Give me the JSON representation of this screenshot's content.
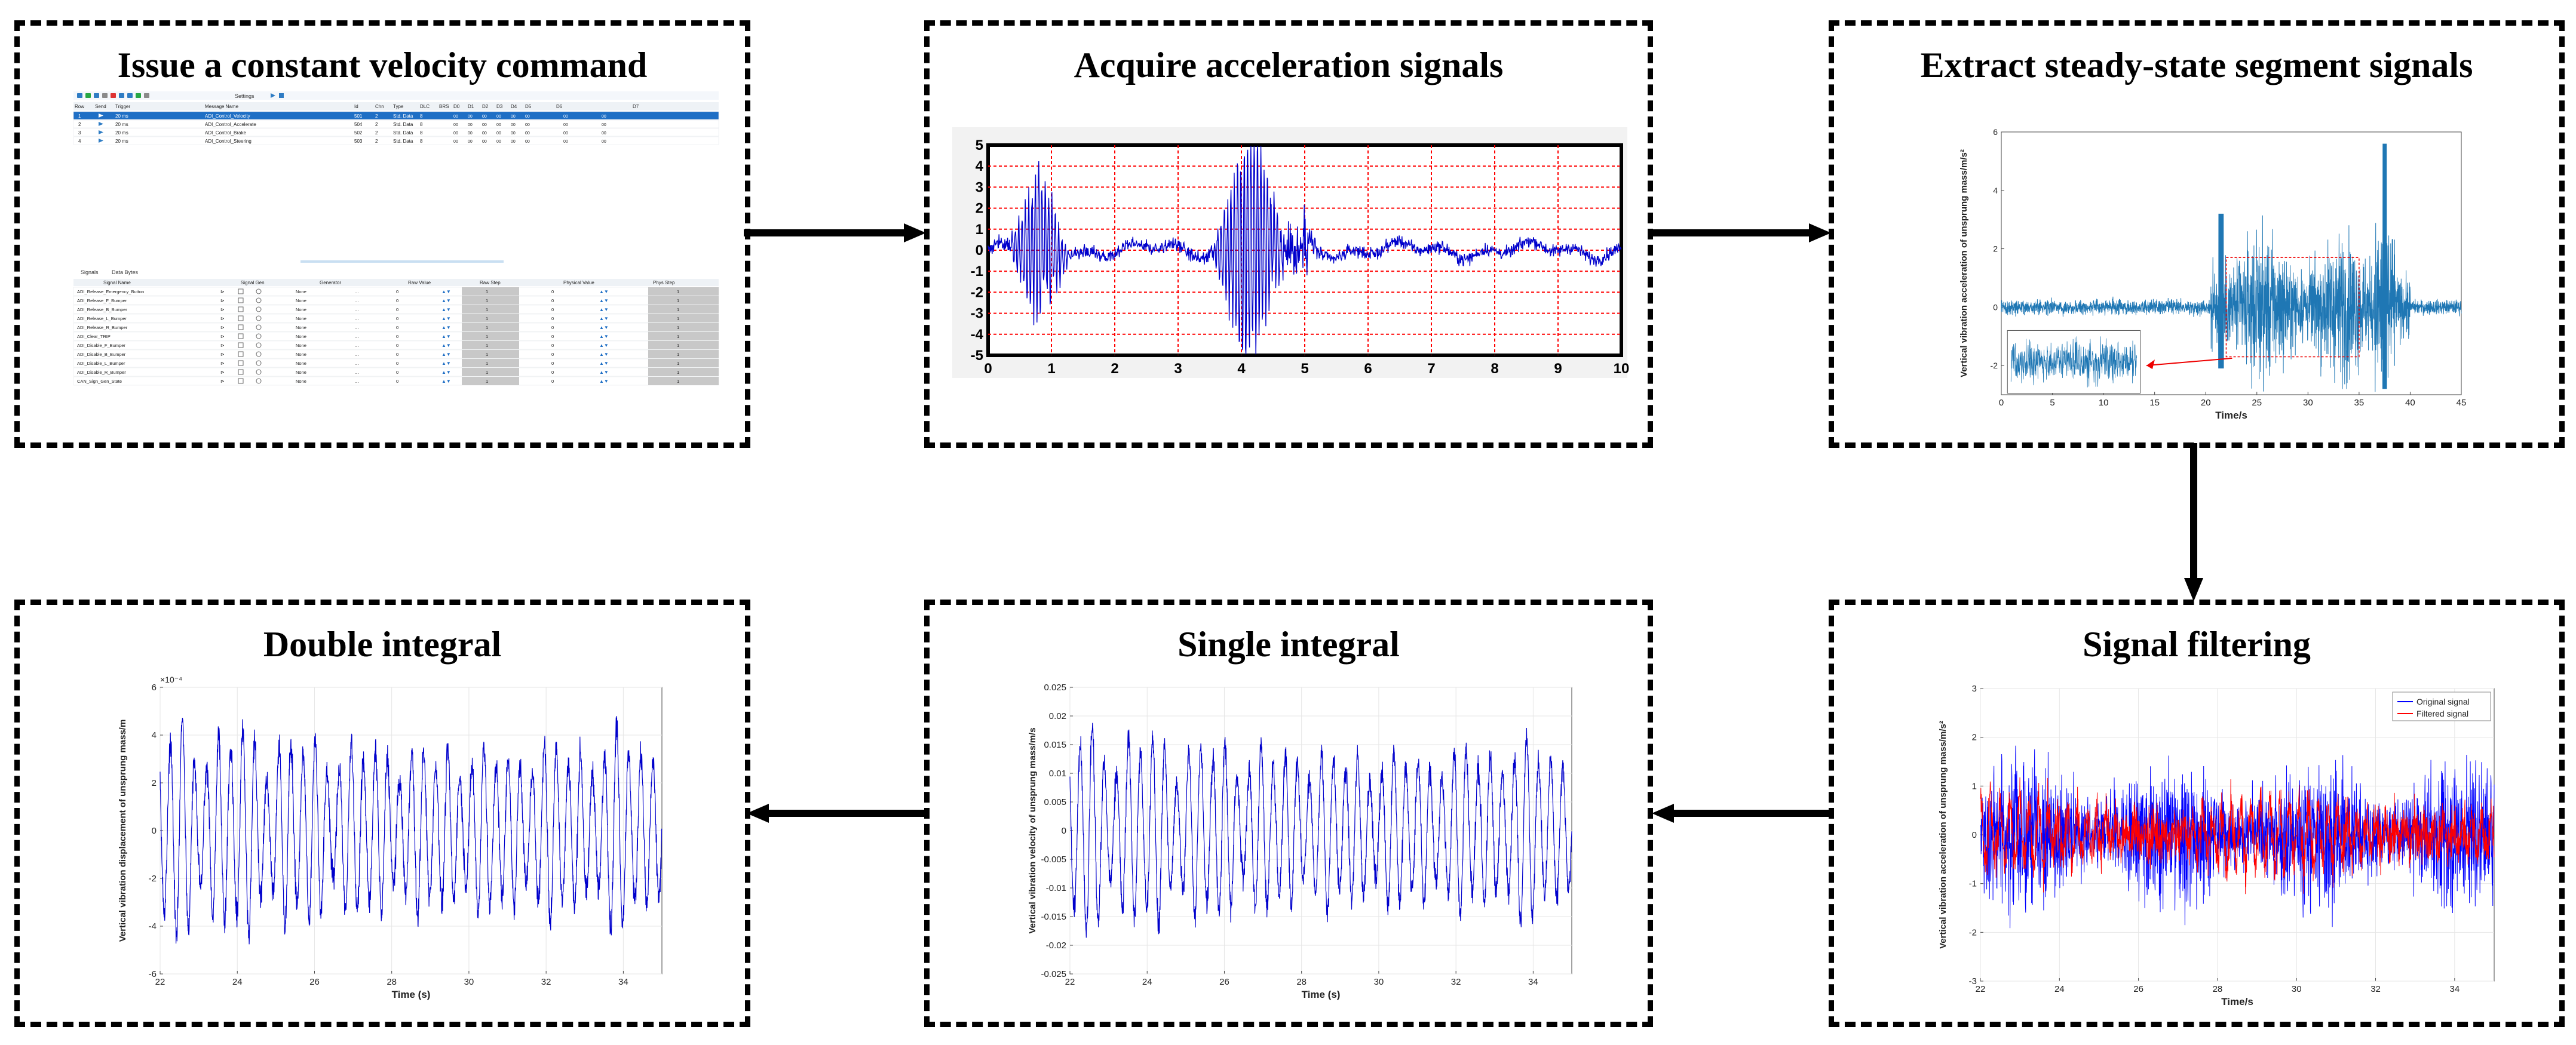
{
  "panels": {
    "p1": {
      "title": "Issue a constant velocity command"
    },
    "p2": {
      "title": "Acquire acceleration signals"
    },
    "p3": {
      "title": "Extract steady-state segment signals"
    },
    "p4": {
      "title": "Signal filtering"
    },
    "p5": {
      "title": "Single integral"
    },
    "p6": {
      "title": "Double integral"
    }
  },
  "software": {
    "msg_headers": [
      "Row",
      "Send",
      "Trigger",
      "Message Name",
      "Id",
      "Chn",
      "Type",
      "DLC",
      "BRS",
      "D0",
      "D1",
      "D2",
      "D3",
      "D4",
      "D5",
      "D6",
      "D7"
    ],
    "msg_rows": [
      [
        "1",
        "20 ms",
        "ADI_Control_Velocity",
        "501",
        "2",
        "Std. Data",
        "8"
      ],
      [
        "2",
        "20 ms",
        "ADI_Control_Accelerate",
        "504",
        "2",
        "Std. Data",
        "8"
      ],
      [
        "3",
        "20 ms",
        "ADI_Control_Brake",
        "502",
        "2",
        "Std. Data",
        "8"
      ],
      [
        "4",
        "20 ms",
        "ADI_Control_Steering",
        "503",
        "2",
        "Std. Data",
        "8"
      ]
    ],
    "toolbar_label": "Settings",
    "tabs": [
      "Signals",
      "Data Bytes"
    ],
    "sig_headers": [
      "Signal Name",
      "Signal Gen",
      "Generator",
      "Raw Value",
      "Raw Step",
      "Physical Value",
      "Phys Step"
    ],
    "sig_rows": [
      [
        "ADI_Release_Emergency_Button",
        "None",
        "0",
        "1",
        "0",
        "1"
      ],
      [
        "ADI_Release_F_Bumper",
        "None",
        "0",
        "1",
        "0",
        "1"
      ],
      [
        "ADI_Release_B_Bumper",
        "None",
        "0",
        "1",
        "0",
        "1"
      ],
      [
        "ADI_Release_L_Bumper",
        "None",
        "0",
        "1",
        "0",
        "1"
      ],
      [
        "ADI_Release_R_Bumper",
        "None",
        "0",
        "1",
        "0",
        "1"
      ],
      [
        "ADI_Clear_TRIP",
        "None",
        "0",
        "1",
        "0",
        "1"
      ],
      [
        "ADI_Disable_F_Bumper",
        "None",
        "0",
        "1",
        "0",
        "1"
      ],
      [
        "ADI_Disable_B_Bumper",
        "None",
        "0",
        "1",
        "0",
        "1"
      ],
      [
        "ADI_Disable_L_Bumper",
        "None",
        "0",
        "1",
        "0",
        "1"
      ],
      [
        "ADI_Disable_R_Bumper",
        "None",
        "0",
        "1",
        "0",
        "1"
      ],
      [
        "CAN_Sign_Gen_State",
        "None",
        "0",
        "1",
        "0",
        "1"
      ]
    ]
  },
  "chart_data": [
    {
      "id": "acquire",
      "type": "line",
      "xlim": [
        0,
        10
      ],
      "ylim": [
        -5,
        5
      ],
      "xticks": [
        0,
        1,
        2,
        3,
        4,
        5,
        6,
        7,
        8,
        9,
        10
      ],
      "yticks": [
        5,
        4,
        3,
        2,
        1,
        0,
        -1,
        -2,
        -3,
        -4,
        -5
      ],
      "grid": true,
      "grid_color": "#ff0000",
      "line_color": "#0000cc",
      "frame_color": "#000000",
      "bursts": [
        [
          0.8,
          4.8
        ],
        [
          4.0,
          4.9
        ],
        [
          4.3,
          4.6
        ]
      ]
    },
    {
      "id": "extract",
      "type": "line",
      "xlabel": "Time/s",
      "ylabel": "Vertical vibration acceleration of unsprung mass/m/s²",
      "xlim": [
        0,
        45
      ],
      "ylim": [
        -3,
        6
      ],
      "xticks": [
        0,
        5,
        10,
        15,
        20,
        25,
        30,
        35,
        40,
        45
      ],
      "line_color": "#1f77b4",
      "selection": [
        22,
        35
      ]
    },
    {
      "id": "filtering",
      "type": "line",
      "xlabel": "Time/s",
      "ylabel": "Vertical vibration acceleration of unsprung mass/m/s²",
      "xlim": [
        22,
        35
      ],
      "ylim": [
        -3,
        3
      ],
      "xticks": [
        22,
        24,
        26,
        28,
        30,
        32,
        34
      ],
      "yticks": [
        -3,
        -2,
        -1,
        0,
        1,
        2,
        3
      ],
      "series": [
        {
          "name": "Original signal",
          "color": "#0000ff"
        },
        {
          "name": "Filtered signal",
          "color": "#ff0000"
        }
      ],
      "legend": "top-right"
    },
    {
      "id": "single",
      "type": "line",
      "xlabel": "Time (s)",
      "ylabel": "Vertical vibration velocity of unsprung mass/m/s",
      "xlim": [
        22,
        35
      ],
      "ylim": [
        -0.025,
        0.025
      ],
      "xticks": [
        22,
        24,
        26,
        28,
        30,
        32,
        34
      ],
      "yticks": [
        -0.025,
        -0.02,
        -0.015,
        -0.01,
        -0.005,
        0,
        0.005,
        0.01,
        0.015,
        0.02,
        0.025
      ],
      "line_color": "#0000cc",
      "amplitude": 0.022
    },
    {
      "id": "double",
      "type": "line",
      "xlabel": "Time (s)",
      "ylabel": "Vertical vibration displacement of unsprung mass/m",
      "xlim": [
        22,
        35
      ],
      "ylim": [
        -6,
        6
      ],
      "xticks": [
        22,
        24,
        26,
        28,
        30,
        32,
        34
      ],
      "yticks": [
        -6,
        -4,
        -2,
        0,
        2,
        4,
        6
      ],
      "y_exponent": "×10⁻⁴",
      "line_color": "#0000cc",
      "amplitude": 5.7
    }
  ]
}
